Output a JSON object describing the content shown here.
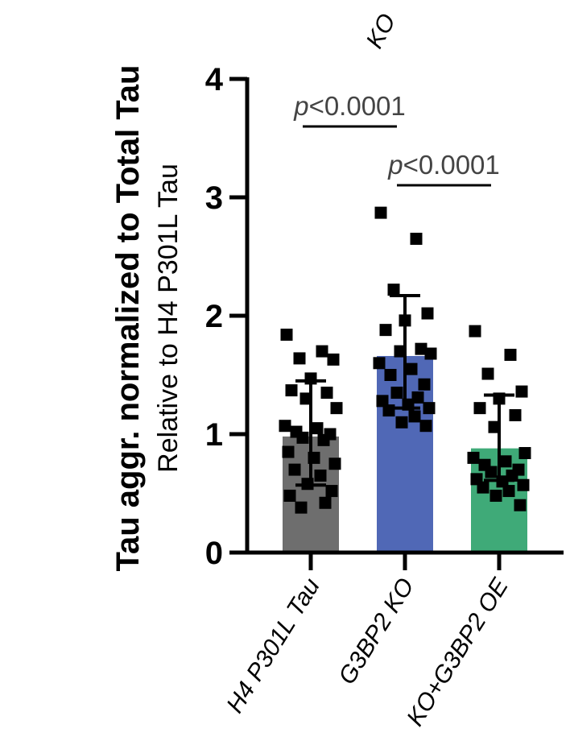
{
  "chart_data": {
    "type": "bar",
    "ylabel": "Tau aggr. normalized to Total Tau",
    "ylabel_sub": "Relative to H4 P301L Tau",
    "ylim": [
      0,
      4
    ],
    "yticks": [
      "0",
      "1",
      "2",
      "3",
      "4"
    ],
    "categories": [
      "H4 P301L Tau",
      "G3BP2 KO",
      "KO+G3BP2 OE"
    ],
    "cropped_top_label": "KO",
    "colors": [
      "#6e6e6e",
      "#5068b6",
      "#3faa78"
    ],
    "series": [
      {
        "means": [
          0.98,
          1.66,
          0.88
        ],
        "sd_upper": [
          1.45,
          2.17,
          1.33
        ],
        "sd_lower": [
          0.57,
          1.22,
          0.61
        ],
        "points": [
          [
            1.84,
            1.7,
            1.64,
            1.63,
            1.47,
            1.37,
            1.35,
            1.3,
            1.22,
            1.07,
            1.05,
            1.02,
            1.0,
            0.97,
            0.95,
            0.85,
            0.8,
            0.75,
            0.7,
            0.65,
            0.58,
            0.52,
            0.48,
            0.42,
            0.38
          ],
          [
            2.87,
            2.65,
            2.22,
            2.02,
            1.96,
            1.88,
            1.72,
            1.7,
            1.68,
            1.6,
            1.55,
            1.5,
            1.42,
            1.35,
            1.31,
            1.28,
            1.25,
            1.22,
            1.2,
            1.15,
            1.1,
            1.07
          ],
          [
            1.87,
            1.67,
            1.51,
            1.36,
            1.3,
            1.22,
            1.16,
            1.06,
            0.84,
            0.8,
            0.77,
            0.74,
            0.7,
            0.68,
            0.65,
            0.62,
            0.6,
            0.57,
            0.55,
            0.52,
            0.48,
            0.4
          ]
        ]
      }
    ],
    "comparisons": [
      {
        "from": 0,
        "to": 1,
        "label_p": "p",
        "label_rest": "<0.0001"
      },
      {
        "from": 1,
        "to": 2,
        "label_p": "p",
        "label_rest": "<0.0001"
      }
    ]
  }
}
